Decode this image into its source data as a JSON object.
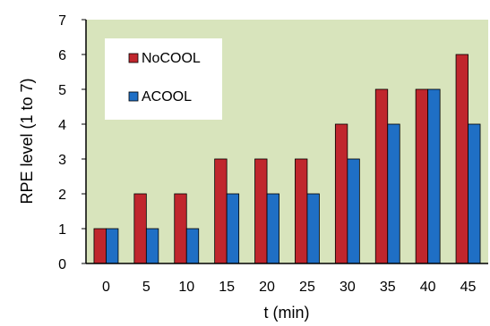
{
  "chart_data": {
    "type": "bar",
    "title": "",
    "xlabel": "t (min)",
    "ylabel": "RPE level (1 to 7)",
    "categories": [
      "0",
      "5",
      "10",
      "15",
      "20",
      "25",
      "30",
      "35",
      "40",
      "45"
    ],
    "series": [
      {
        "name": "NoCOOL",
        "color": "#C0262D",
        "values": [
          1,
          2,
          2,
          3,
          3,
          3,
          4,
          5,
          5,
          6
        ]
      },
      {
        "name": "ACOOL",
        "color": "#1F6FC5",
        "values": [
          1,
          1,
          1,
          2,
          2,
          2,
          3,
          4,
          5,
          4
        ]
      }
    ],
    "ylim": [
      0,
      7
    ],
    "yticks": [
      0,
      1,
      2,
      3,
      4,
      5,
      6,
      7
    ],
    "grid": false,
    "plot_background": "#D8E4BC",
    "legend_placement": "top-left"
  }
}
